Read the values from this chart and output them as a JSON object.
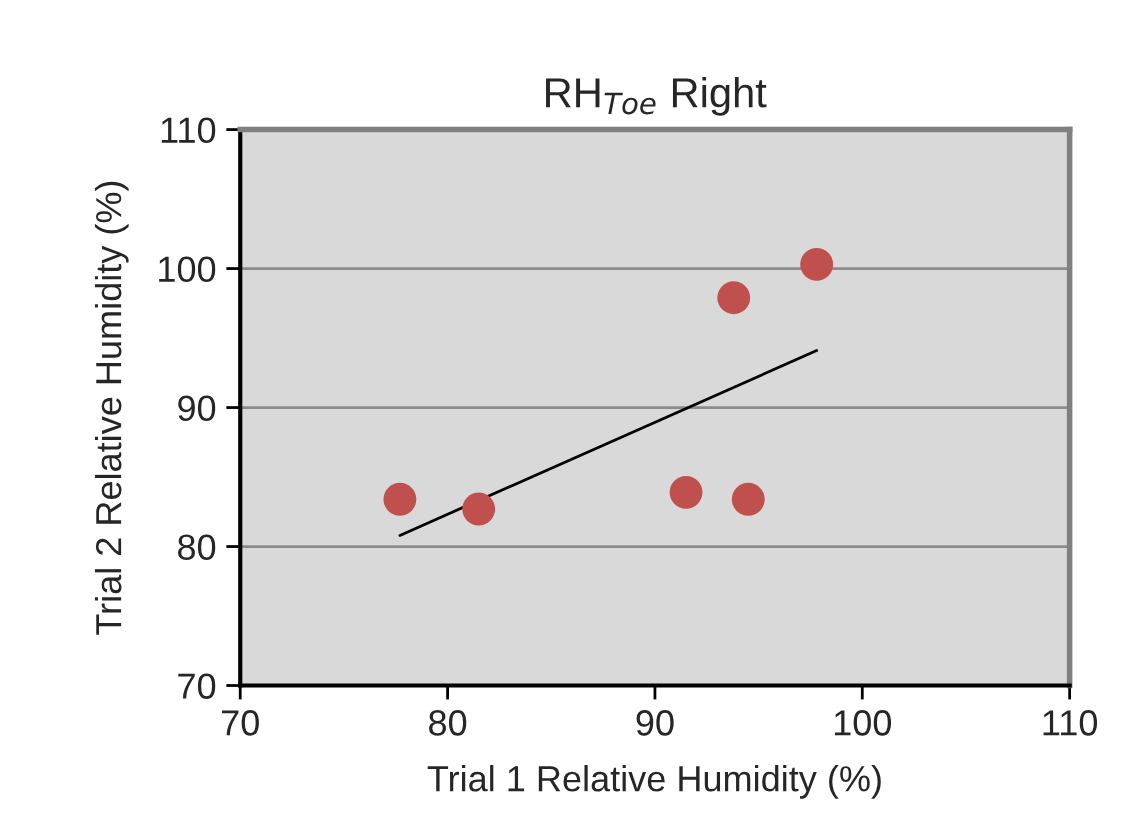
{
  "chart_data": {
    "type": "scatter",
    "title": "RH$_{Toe}$ Right",
    "xlabel": "Trial 1 Relative Humidity (%)",
    "ylabel": "Trial 2 Relative Humidity (%)",
    "series": [
      {
        "color": "#c0504d",
        "x": [
          77.7,
          81.5,
          91.5,
          93.8,
          94.5,
          97.8
        ],
        "values": [
          83.4,
          82.7,
          83.9,
          97.9,
          83.4,
          100.3
        ],
        "marker": "circle"
      },
      {
        "type": "line",
        "color": "#000000",
        "x": [
          77.7,
          97.8
        ],
        "values": [
          80.8,
          94.1
        ],
        "marker": "none",
        "line_style": "solid"
      }
    ],
    "xlim": [
      70,
      110
    ],
    "xticks": [
      70,
      80,
      90,
      100,
      110
    ],
    "ylim": [
      70,
      110
    ],
    "yticks": [
      70,
      80,
      90,
      100,
      110
    ],
    "grid": "y",
    "legend": false
  }
}
